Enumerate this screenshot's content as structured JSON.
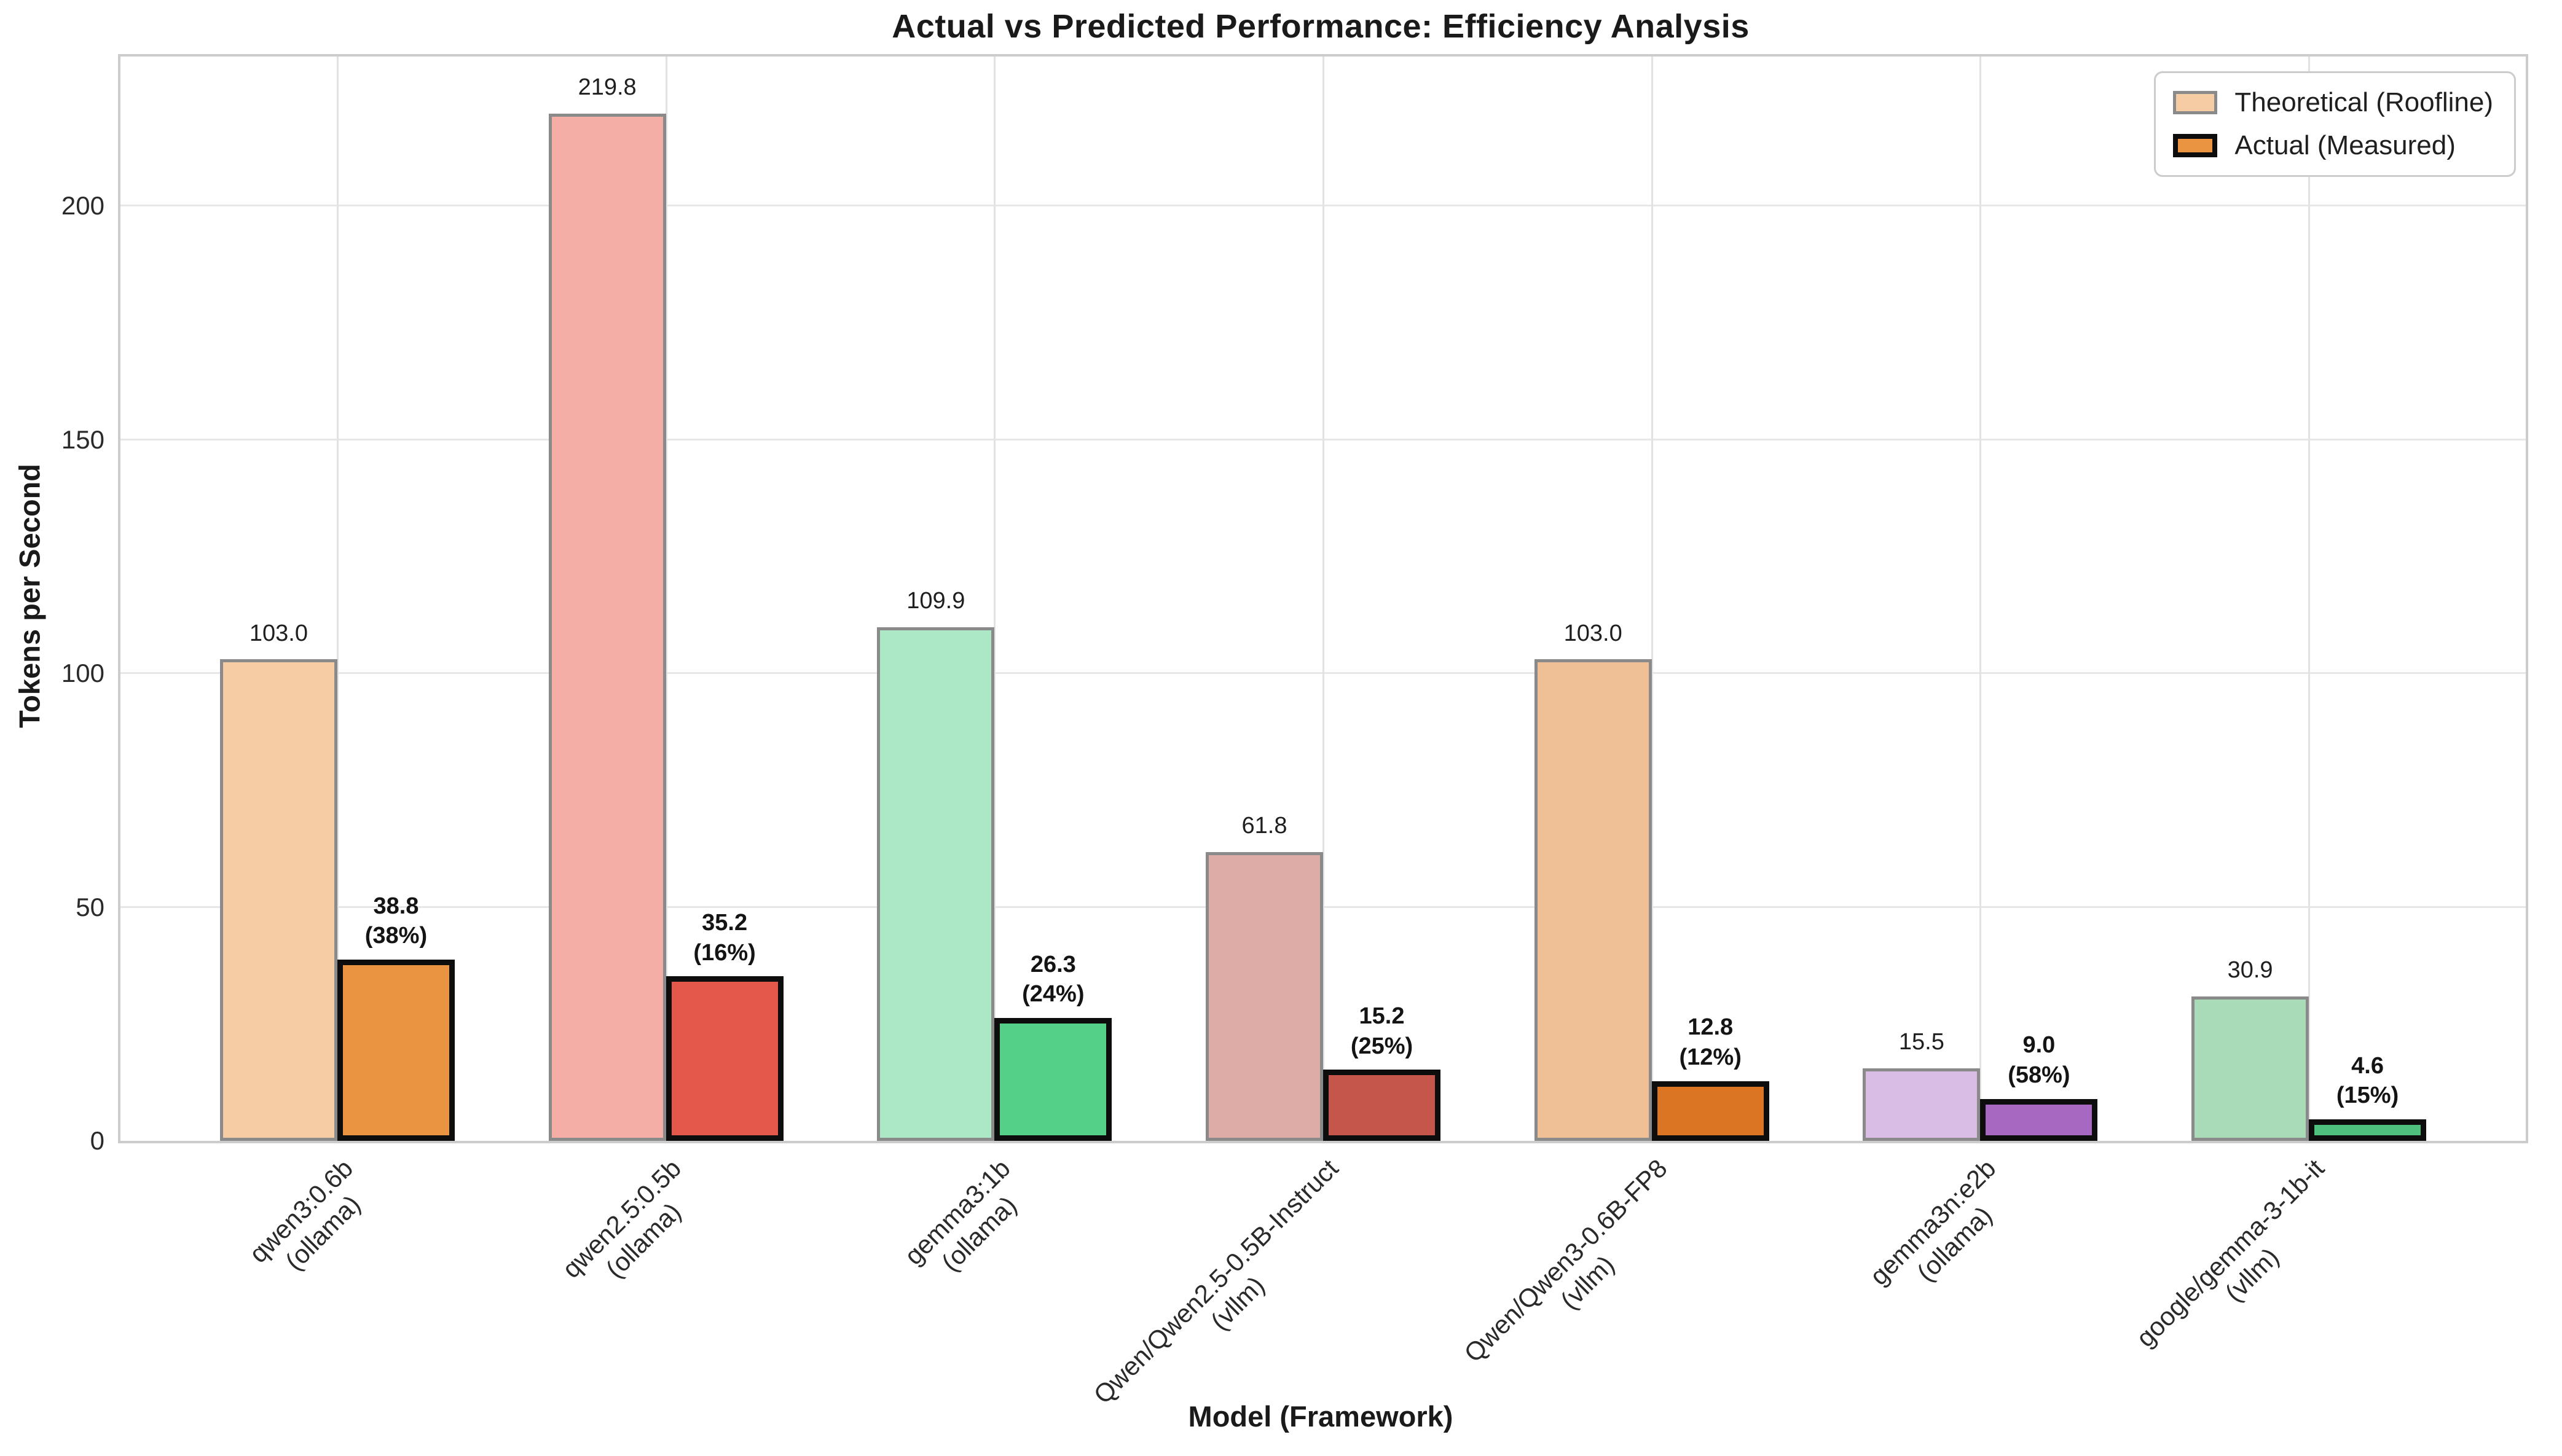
{
  "title": "Actual vs Predicted Performance: Efficiency Analysis",
  "axes": {
    "xlabel": "Model (Framework)",
    "ylabel": "Tokens per Second"
  },
  "legend": {
    "items": [
      {
        "label": "Theoretical (Roofline)",
        "swatch_fill": "#F5CCA3",
        "swatch_border": "#8a8a8a"
      },
      {
        "label": "Actual (Measured)",
        "swatch_fill": "#EA9340",
        "swatch_border": "#0d0d0d"
      }
    ]
  },
  "chart_data": {
    "type": "bar",
    "title": "Actual vs Predicted Performance: Efficiency Analysis",
    "xlabel": "Model (Framework)",
    "ylabel": "Tokens per Second",
    "ylim": [
      0,
      232
    ],
    "yticks": [
      0,
      50,
      100,
      150,
      200
    ],
    "grid": true,
    "legend_position": "upper right",
    "categories": [
      "qwen3:0.6b (ollama)",
      "qwen2.5:0.5b (ollama)",
      "gemma3:1b (ollama)",
      "Qwen/Qwen2.5-0.5B-Instruct (vllm)",
      "Qwen/Qwen3-0.6B-FP8 (vllm)",
      "gemma3n:e2b (ollama)",
      "google/gemma-3-1b-it (vllm)"
    ],
    "series": [
      {
        "name": "Theoretical (Roofline)",
        "values": [
          103.0,
          219.8,
          109.9,
          61.8,
          103.0,
          15.5,
          30.9
        ]
      },
      {
        "name": "Actual (Measured)",
        "values": [
          38.8,
          35.2,
          26.3,
          15.2,
          12.8,
          9.0,
          4.6
        ]
      }
    ],
    "groups": [
      {
        "model": "qwen3:0.6b",
        "framework": "(ollama)",
        "theoretical": 103.0,
        "actual": 38.8,
        "theoretical_label": "103.0",
        "actual_label": "38.8",
        "actual_pct_label": "(38%)",
        "theoretical_color": "#F5CCA3",
        "actual_color": "#EA9340"
      },
      {
        "model": "qwen2.5:0.5b",
        "framework": "(ollama)",
        "theoretical": 219.8,
        "actual": 35.2,
        "theoretical_label": "219.8",
        "actual_label": "35.2",
        "actual_pct_label": "(16%)",
        "theoretical_color": "#F5AEA6",
        "actual_color": "#E4584C"
      },
      {
        "model": "gemma3:1b",
        "framework": "(ollama)",
        "theoretical": 109.9,
        "actual": 26.3,
        "theoretical_label": "109.9",
        "actual_label": "26.3",
        "actual_pct_label": "(24%)",
        "theoretical_color": "#ACE8C5",
        "actual_color": "#54D089"
      },
      {
        "model": "Qwen/Qwen2.5-0.5B-Instruct",
        "framework": "(vllm)",
        "theoretical": 61.8,
        "actual": 15.2,
        "theoretical_label": "61.8",
        "actual_label": "15.2",
        "actual_pct_label": "(25%)",
        "theoretical_color": "#DEACA7",
        "actual_color": "#C5564C"
      },
      {
        "model": "Qwen/Qwen3-0.6B-FP8",
        "framework": "(vllm)",
        "theoretical": 103.0,
        "actual": 12.8,
        "theoretical_label": "103.0",
        "actual_label": "12.8",
        "actual_pct_label": "(12%)",
        "theoretical_color": "#EFBF95",
        "actual_color": "#DB7523"
      },
      {
        "model": "gemma3n:e2b",
        "framework": "(ollama)",
        "theoretical": 15.5,
        "actual": 9.0,
        "theoretical_label": "15.5",
        "actual_label": "9.0",
        "actual_pct_label": "(58%)",
        "theoretical_color": "#D9BDE5",
        "actual_color": "#A768C2"
      },
      {
        "model": "google/gemma-3-1b-it",
        "framework": "(vllm)",
        "theoretical": 30.9,
        "actual": 4.6,
        "theoretical_label": "30.9",
        "actual_label": "4.6",
        "actual_pct_label": "(15%)",
        "theoretical_color": "#A9DBB9",
        "actual_color": "#4FC07E"
      }
    ]
  }
}
